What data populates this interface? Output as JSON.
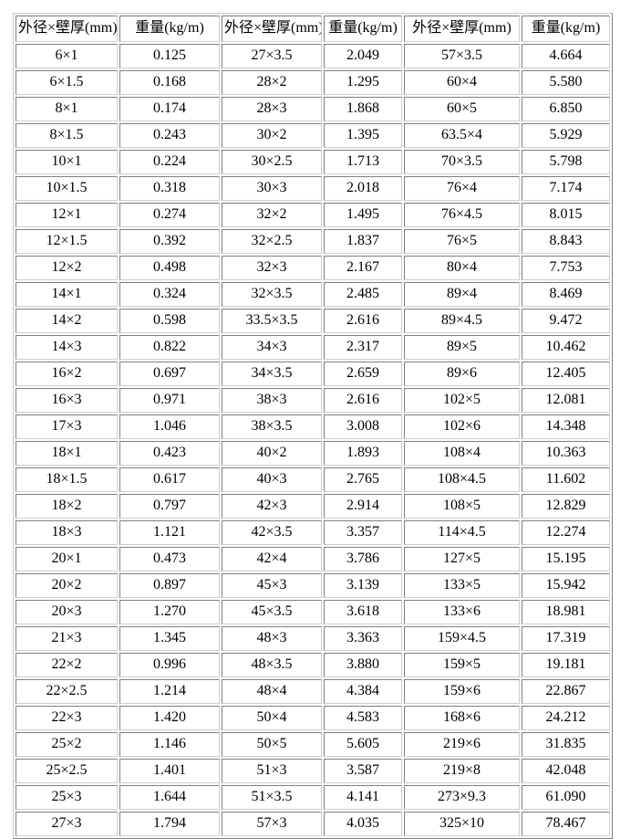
{
  "table": {
    "headers": [
      "外径×壁厚(mm)",
      "重量(kg/m)",
      "外径×壁厚(mm)",
      "重量(kg/m)",
      "外径×壁厚(mm)",
      "重量(kg/m)"
    ],
    "rows": [
      [
        "6×1",
        "0.125",
        "27×3.5",
        "2.049",
        "57×3.5",
        "4.664"
      ],
      [
        "6×1.5",
        "0.168",
        "28×2",
        "1.295",
        "60×4",
        "5.580"
      ],
      [
        "8×1",
        "0.174",
        "28×3",
        "1.868",
        "60×5",
        "6.850"
      ],
      [
        "8×1.5",
        "0.243",
        "30×2",
        "1.395",
        "63.5×4",
        "5.929"
      ],
      [
        "10×1",
        "0.224",
        "30×2.5",
        "1.713",
        "70×3.5",
        "5.798"
      ],
      [
        "10×1.5",
        "0.318",
        "30×3",
        "2.018",
        "76×4",
        "7.174"
      ],
      [
        "12×1",
        "0.274",
        "32×2",
        "1.495",
        "76×4.5",
        "8.015"
      ],
      [
        "12×1.5",
        "0.392",
        "32×2.5",
        "1.837",
        "76×5",
        "8.843"
      ],
      [
        "12×2",
        "0.498",
        "32×3",
        "2.167",
        "80×4",
        "7.753"
      ],
      [
        "14×1",
        "0.324",
        "32×3.5",
        "2.485",
        "89×4",
        "8.469"
      ],
      [
        "14×2",
        "0.598",
        "33.5×3.5",
        "2.616",
        "89×4.5",
        "9.472"
      ],
      [
        "14×3",
        "0.822",
        "34×3",
        "2.317",
        "89×5",
        "10.462"
      ],
      [
        "16×2",
        "0.697",
        "34×3.5",
        "2.659",
        "89×6",
        "12.405"
      ],
      [
        "16×3",
        "0.971",
        "38×3",
        "2.616",
        "102×5",
        "12.081"
      ],
      [
        "17×3",
        "1.046",
        "38×3.5",
        "3.008",
        "102×6",
        "14.348"
      ],
      [
        "18×1",
        "0.423",
        "40×2",
        "1.893",
        "108×4",
        "10.363"
      ],
      [
        "18×1.5",
        "0.617",
        "40×3",
        "2.765",
        "108×4.5",
        "11.602"
      ],
      [
        "18×2",
        "0.797",
        "42×3",
        "2.914",
        "108×5",
        "12.829"
      ],
      [
        "18×3",
        "1.121",
        "42×3.5",
        "3.357",
        "114×4.5",
        "12.274"
      ],
      [
        "20×1",
        "0.473",
        "42×4",
        "3.786",
        "127×5",
        "15.195"
      ],
      [
        "20×2",
        "0.897",
        "45×3",
        "3.139",
        "133×5",
        "15.942"
      ],
      [
        "20×3",
        "1.270",
        "45×3.5",
        "3.618",
        "133×6",
        "18.981"
      ],
      [
        "21×3",
        "1.345",
        "48×3",
        "3.363",
        "159×4.5",
        "17.319"
      ],
      [
        "22×2",
        "0.996",
        "48×3.5",
        "3.880",
        "159×5",
        "19.181"
      ],
      [
        "22×2.5",
        "1.214",
        "48×4",
        "4.384",
        "159×6",
        "22.867"
      ],
      [
        "22×3",
        "1.420",
        "50×4",
        "4.583",
        "168×6",
        "24.212"
      ],
      [
        "25×2",
        "1.146",
        "50×5",
        "5.605",
        "219×6",
        "31.835"
      ],
      [
        "25×2.5",
        "1.401",
        "51×3",
        "3.587",
        "219×8",
        "42.048"
      ],
      [
        "25×3",
        "1.644",
        "51×3.5",
        "4.141",
        "273×9.3",
        "61.090"
      ],
      [
        "27×3",
        "1.794",
        "57×3",
        "4.035",
        "325×10",
        "78.467"
      ]
    ]
  },
  "colors": {
    "border_dark": "#7f7f7f",
    "border_light": "#cecece",
    "text": "#000000",
    "background": "#ffffff"
  }
}
